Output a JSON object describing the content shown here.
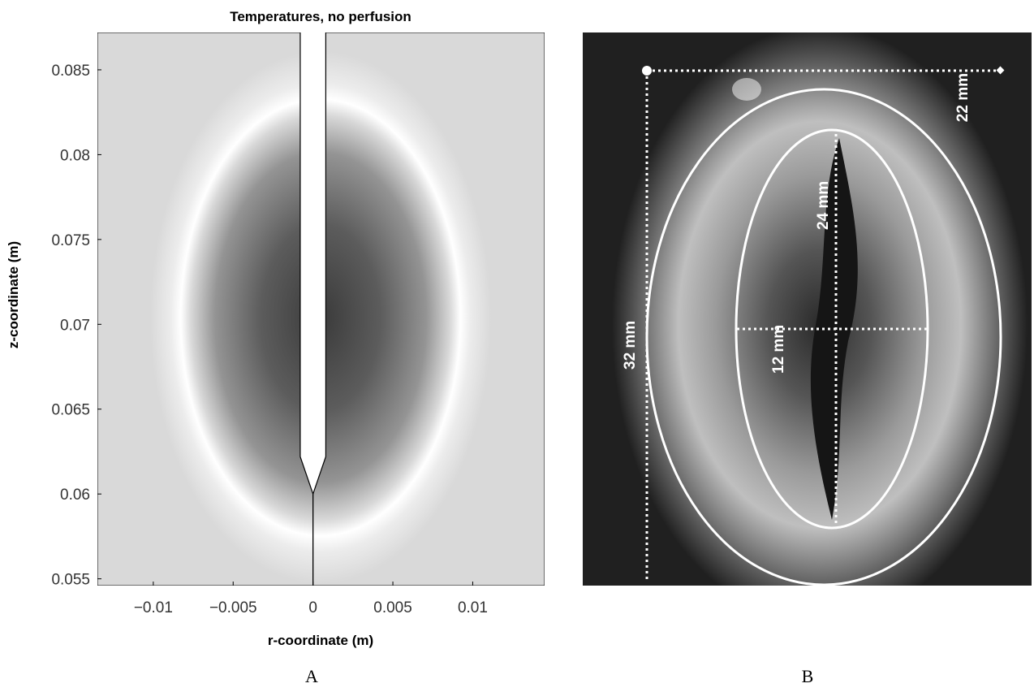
{
  "chart_data": [
    {
      "type": "heatmap",
      "title": "Temperatures, no perfusion",
      "xlabel": "r-coordinate (m)",
      "ylabel": "z-coordinate (m)",
      "xlim": [
        -0.0135,
        0.0145
      ],
      "ylim": [
        0.0546,
        0.0872
      ],
      "x_ticks": [
        -0.01,
        -0.005,
        0,
        0.005,
        0.01
      ],
      "x_tick_labels": [
        "−0.01",
        "−0.005",
        "0",
        "0.005",
        "0.01"
      ],
      "y_ticks": [
        0.055,
        0.06,
        0.065,
        0.07,
        0.075,
        0.08,
        0.085
      ],
      "y_tick_labels": [
        "0.055",
        "0.06",
        "0.065",
        "0.07",
        "0.075",
        "0.08",
        "0.085"
      ],
      "colormap": "grayscale",
      "grid": false,
      "probe": {
        "r_half_width": 0.0008,
        "tip_z": 0.06,
        "taper_start_z": 0.0622
      },
      "isotherm_ellipse": {
        "center_r": 0.0,
        "center_z": 0.071,
        "r_radius": 0.0072,
        "z_radius": 0.0125
      }
    },
    {
      "type": "image",
      "annotations": [
        "22 mm",
        "32 mm",
        "24 mm",
        "12 mm"
      ]
    }
  ],
  "panels": {
    "a": "A",
    "b": "B"
  }
}
